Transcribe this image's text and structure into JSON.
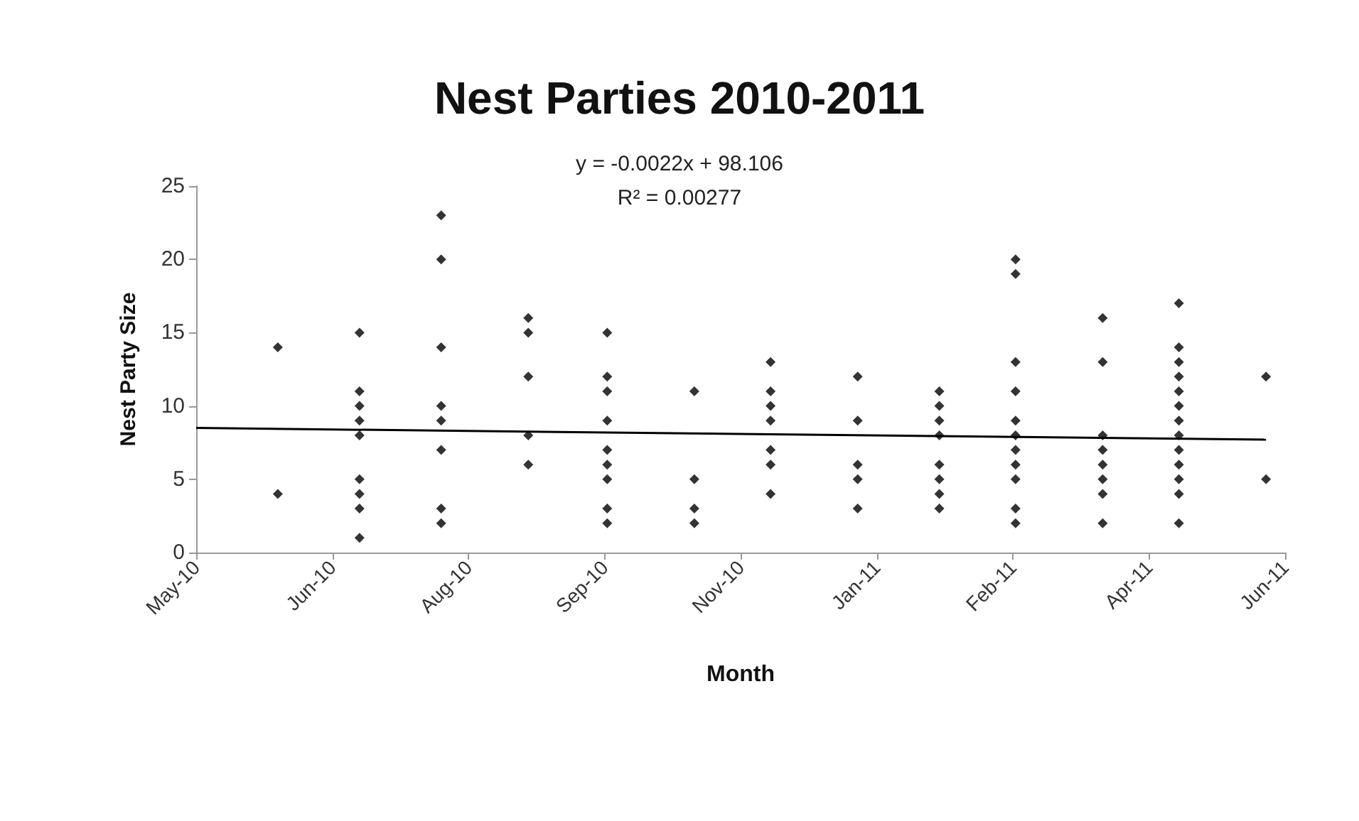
{
  "chart_data": {
    "type": "scatter",
    "title": "Nest Parties 2010-2011",
    "xlabel": "Month",
    "ylabel": "Nest Party Size",
    "annotations": [
      "y = -0.0022x + 98.106",
      "R² = 0.00277"
    ],
    "xlim": [
      "2010-05-01",
      "2011-06-05"
    ],
    "xticks": [
      {
        "value": "2010-05-01",
        "label": "May-10"
      },
      {
        "value": "2010-06-20",
        "label": "Jun-10"
      },
      {
        "value": "2010-08-09",
        "label": "Aug-10"
      },
      {
        "value": "2010-09-28",
        "label": "Sep-10"
      },
      {
        "value": "2010-11-17",
        "label": "Nov-10"
      },
      {
        "value": "2011-01-06",
        "label": "Jan-11"
      },
      {
        "value": "2011-02-25",
        "label": "Feb-11"
      },
      {
        "value": "2011-04-16",
        "label": "Apr-11"
      },
      {
        "value": "2011-06-05",
        "label": "Jun-11"
      }
    ],
    "ylim": [
      0,
      25
    ],
    "yticks": [
      0,
      5,
      10,
      15,
      20,
      25
    ],
    "marker": "diamond",
    "series": [
      {
        "color": "#000000",
        "x": [
          "2010-05-31",
          "2010-05-31",
          "2010-06-30",
          "2010-06-30",
          "2010-06-30",
          "2010-06-30",
          "2010-06-30",
          "2010-06-30",
          "2010-06-30",
          "2010-06-30",
          "2010-06-30",
          "2010-07-30",
          "2010-07-30",
          "2010-07-30",
          "2010-07-30",
          "2010-07-30",
          "2010-07-30",
          "2010-07-30",
          "2010-07-30",
          "2010-08-31",
          "2010-08-31",
          "2010-08-31",
          "2010-08-31",
          "2010-08-31",
          "2010-09-29",
          "2010-09-29",
          "2010-09-29",
          "2010-09-29",
          "2010-09-29",
          "2010-09-29",
          "2010-09-29",
          "2010-09-29",
          "2010-09-29",
          "2010-10-31",
          "2010-10-31",
          "2010-10-31",
          "2010-10-31",
          "2010-11-28",
          "2010-11-28",
          "2010-11-28",
          "2010-11-28",
          "2010-11-28",
          "2010-11-28",
          "2010-11-28",
          "2010-12-30",
          "2010-12-30",
          "2010-12-30",
          "2010-12-30",
          "2010-12-30",
          "2011-01-29",
          "2011-01-29",
          "2011-01-29",
          "2011-01-29",
          "2011-01-29",
          "2011-01-29",
          "2011-01-29",
          "2011-01-29",
          "2011-02-26",
          "2011-02-26",
          "2011-02-26",
          "2011-02-26",
          "2011-02-26",
          "2011-02-26",
          "2011-02-26",
          "2011-02-26",
          "2011-02-26",
          "2011-02-26",
          "2011-02-26",
          "2011-03-30",
          "2011-03-30",
          "2011-03-30",
          "2011-03-30",
          "2011-03-30",
          "2011-03-30",
          "2011-03-30",
          "2011-03-30",
          "2011-04-27",
          "2011-04-27",
          "2011-04-27",
          "2011-04-27",
          "2011-04-27",
          "2011-04-27",
          "2011-04-27",
          "2011-04-27",
          "2011-04-27",
          "2011-04-27",
          "2011-04-27",
          "2011-04-27",
          "2011-04-27",
          "2011-05-29",
          "2011-05-29"
        ],
        "values": [
          14,
          4,
          15,
          11,
          10,
          9,
          8,
          5,
          4,
          3,
          1,
          23,
          20,
          14,
          10,
          9,
          7,
          3,
          2,
          16,
          15,
          12,
          8,
          6,
          15,
          12,
          11,
          9,
          7,
          6,
          5,
          3,
          2,
          11,
          5,
          3,
          2,
          13,
          11,
          10,
          9,
          7,
          6,
          4,
          12,
          9,
          6,
          5,
          3,
          11,
          10,
          9,
          8,
          6,
          5,
          4,
          3,
          20,
          19,
          13,
          11,
          9,
          8,
          7,
          6,
          5,
          3,
          2,
          16,
          13,
          8,
          7,
          6,
          5,
          4,
          2,
          17,
          14,
          13,
          12,
          11,
          10,
          9,
          8,
          7,
          6,
          5,
          4,
          2,
          12,
          5
        ]
      },
      {
        "type": "line",
        "marker": "none",
        "color": "#000000",
        "x": [
          "2010-05-01",
          "2011-05-29"
        ],
        "values": [
          8.5,
          7.7
        ]
      }
    ]
  }
}
